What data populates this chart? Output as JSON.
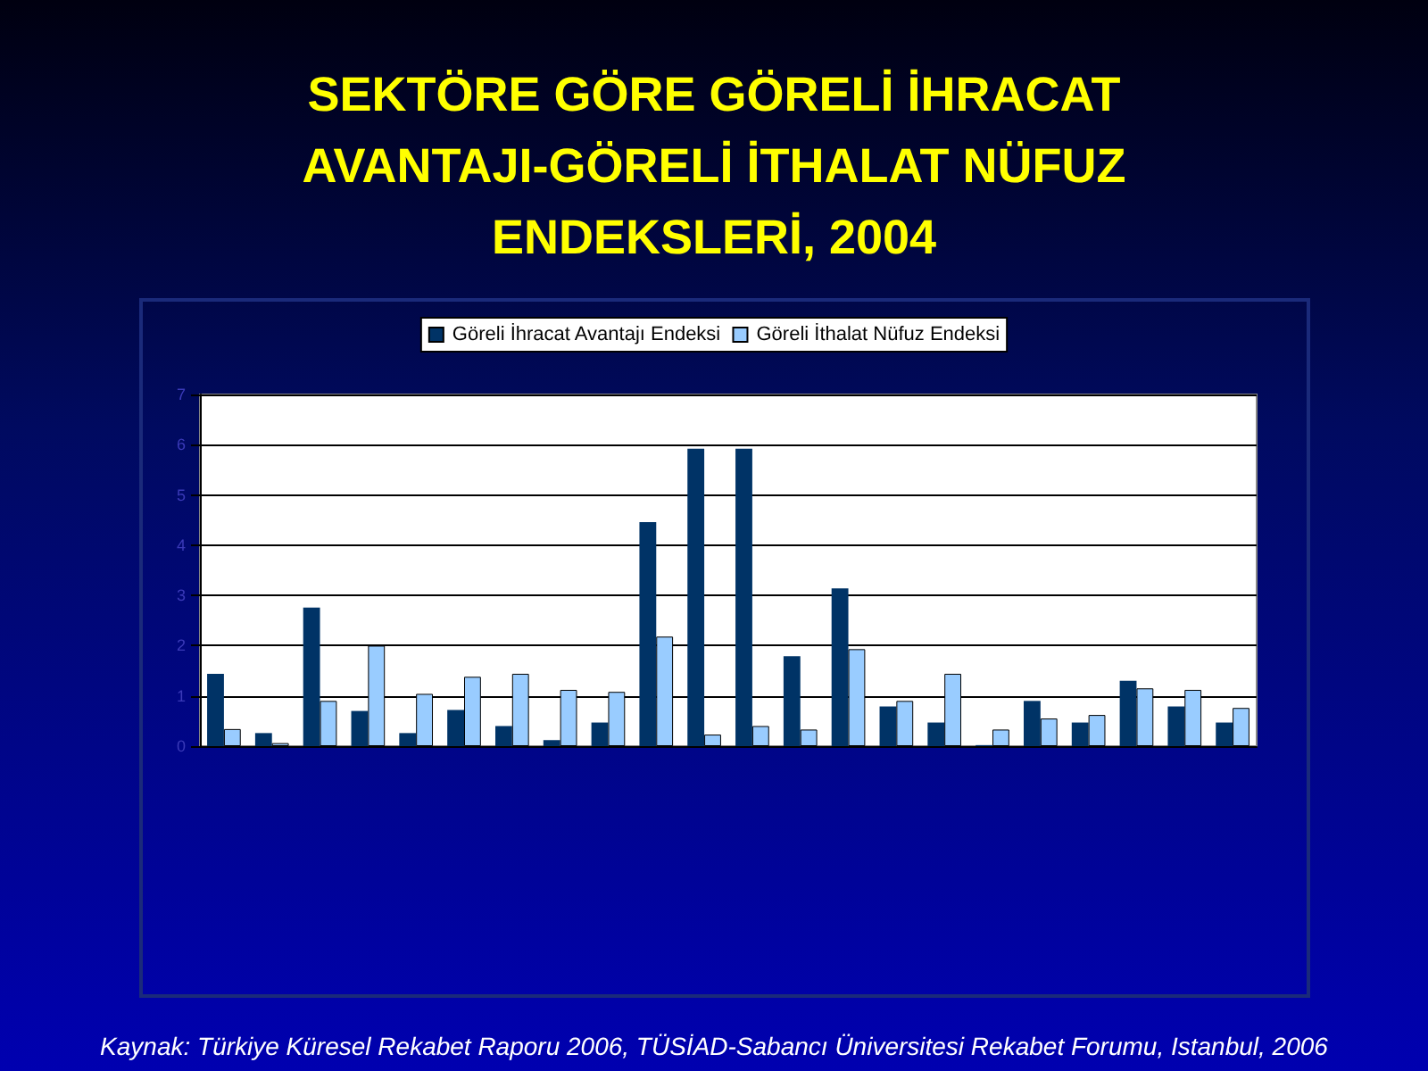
{
  "chart_data": {
    "type": "bar",
    "title": "SEKTÖRE GÖRE GÖRELİ İHRACAT\nAVANTAJI-GÖRELİ İTHALAT NÜFUZ\nENDEKSLERİ, 2004",
    "categories": [
      null,
      null,
      null,
      null,
      null,
      null,
      null,
      null,
      null,
      null,
      null,
      null,
      null,
      null,
      null,
      null,
      null,
      null,
      null,
      null,
      null,
      null
    ],
    "series": [
      {
        "name": "Göreli İhracat Avantajı Endeksi",
        "color": "#003366",
        "values": [
          1.44,
          0.26,
          2.76,
          0.7,
          0.26,
          0.72,
          0.4,
          0.12,
          0.47,
          4.46,
          5.92,
          5.92,
          1.79,
          3.14,
          0.79,
          0.47,
          0.02,
          0.9,
          0.47,
          1.3,
          0.79,
          0.47
        ]
      },
      {
        "name": "Göreli İthalat Nüfuz Endeksi",
        "color": "#99ccff",
        "values": [
          0.34,
          0.06,
          0.9,
          2.0,
          1.04,
          1.38,
          1.44,
          1.12,
          1.08,
          2.18,
          0.23,
          0.4,
          0.33,
          1.93,
          0.9,
          1.44,
          0.33,
          0.55,
          0.62,
          1.15,
          1.12,
          0.76
        ]
      }
    ],
    "ylim": [
      0,
      7
    ],
    "yticks": [
      0,
      1,
      2,
      3,
      4,
      5,
      6,
      7
    ],
    "grid": "y",
    "legend": "top",
    "annotations": [
      "Kaynak: Türkiye Küresel Rekabet Raporu 2006, TÜSİAD-Sabancı Üniversitesi Rekabet Forumu, Istanbul, 2006"
    ]
  }
}
